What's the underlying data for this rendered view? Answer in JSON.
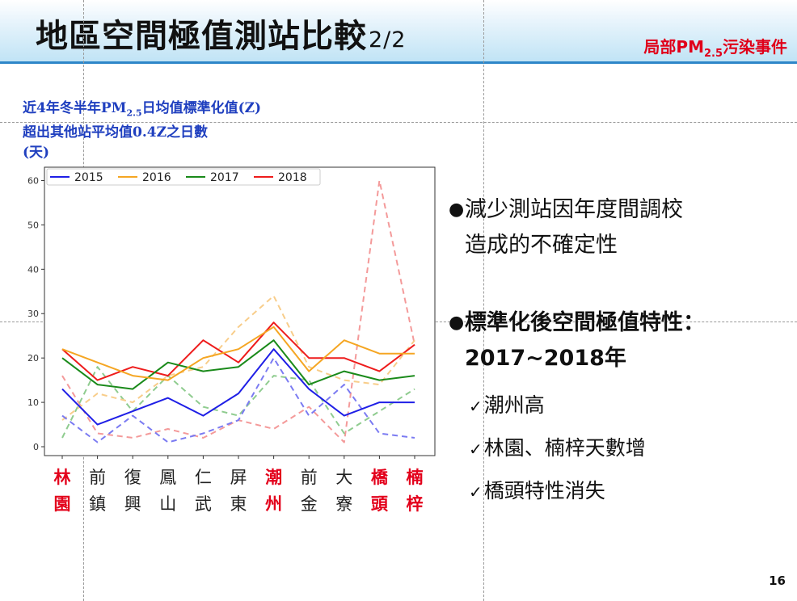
{
  "header": {
    "title_main": "地區空間極值測站比較",
    "title_suffix": "2/2",
    "tag_pre": "局部PM",
    "tag_sub": "2.5",
    "tag_post": "污染事件"
  },
  "chart_ylabel": {
    "line1_pre": "近4年冬半年PM",
    "line1_sub": "2.5",
    "line1_post": "日均值標準化值(Z)",
    "line2": "超出其他站平均值0.4Z之日數",
    "line3": "(天)"
  },
  "chart_data": {
    "type": "line",
    "categories": [
      "林園",
      "前鎮",
      "復興",
      "鳳山",
      "仁武",
      "屏東",
      "潮州",
      "前金",
      "大寮",
      "橋頭",
      "楠梓"
    ],
    "category_lines": [
      [
        "林",
        "園"
      ],
      [
        "前",
        "鎮"
      ],
      [
        "復",
        "興"
      ],
      [
        "鳳",
        "山"
      ],
      [
        "仁",
        "武"
      ],
      [
        "屏",
        "東"
      ],
      [
        "潮",
        "州"
      ],
      [
        "前",
        "金"
      ],
      [
        "大",
        "寮"
      ],
      [
        "橋",
        "頭"
      ],
      [
        "楠",
        "梓"
      ]
    ],
    "highlighted_categories": [
      "林園",
      "潮州",
      "橋頭",
      "楠梓"
    ],
    "highlight_color": "#e3001b",
    "category_color": "#222222",
    "ylim": [
      -2,
      63
    ],
    "yticks": [
      0,
      10,
      20,
      30,
      40,
      50,
      60
    ],
    "legend_position": "top-left",
    "series": [
      {
        "name": "2015",
        "color": "#1f1fe6",
        "style": "solid",
        "values": [
          13,
          5,
          8,
          11,
          7,
          12,
          22,
          13,
          7,
          10,
          10
        ]
      },
      {
        "name": "2016",
        "color": "#f5a623",
        "style": "solid",
        "values": [
          22,
          19,
          16,
          15,
          20,
          22,
          27,
          17,
          24,
          21,
          21
        ]
      },
      {
        "name": "2017",
        "color": "#1a8a1a",
        "style": "solid",
        "values": [
          20,
          14,
          13,
          19,
          17,
          18,
          24,
          14,
          17,
          15,
          16
        ]
      },
      {
        "name": "2018",
        "color": "#ee1c1c",
        "style": "solid",
        "values": [
          22,
          15,
          18,
          16,
          24,
          19,
          28,
          20,
          20,
          17,
          23
        ]
      },
      {
        "name": "",
        "color": "#7b7bf2",
        "style": "dashed",
        "values": [
          7,
          1,
          7,
          1,
          3,
          6,
          20,
          7,
          14,
          3,
          2
        ]
      },
      {
        "name": "",
        "color": "#f8cd8a",
        "style": "dashed",
        "values": [
          6,
          12,
          10,
          16,
          18,
          27,
          34,
          18,
          15,
          14,
          24
        ]
      },
      {
        "name": "",
        "color": "#8fcc8f",
        "style": "dashed",
        "values": [
          2,
          18,
          8,
          16,
          9,
          7,
          16,
          15,
          3,
          8,
          13
        ]
      },
      {
        "name": "",
        "color": "#f49a9a",
        "style": "dashed",
        "values": [
          16,
          3,
          2,
          4,
          2,
          6,
          4,
          9,
          1,
          60,
          23
        ]
      }
    ]
  },
  "bullets": [
    {
      "text": "減少測站因年度間調校\n造成的不確定性"
    },
    {
      "text": "標準化後空間極值特性：\n2017~2018年"
    }
  ],
  "checks": [
    "潮州高",
    "林園、楠梓天數增",
    "橋頭特性消失"
  ],
  "symbols": {
    "bullet": "●",
    "check": "✓"
  },
  "page_number": "16"
}
